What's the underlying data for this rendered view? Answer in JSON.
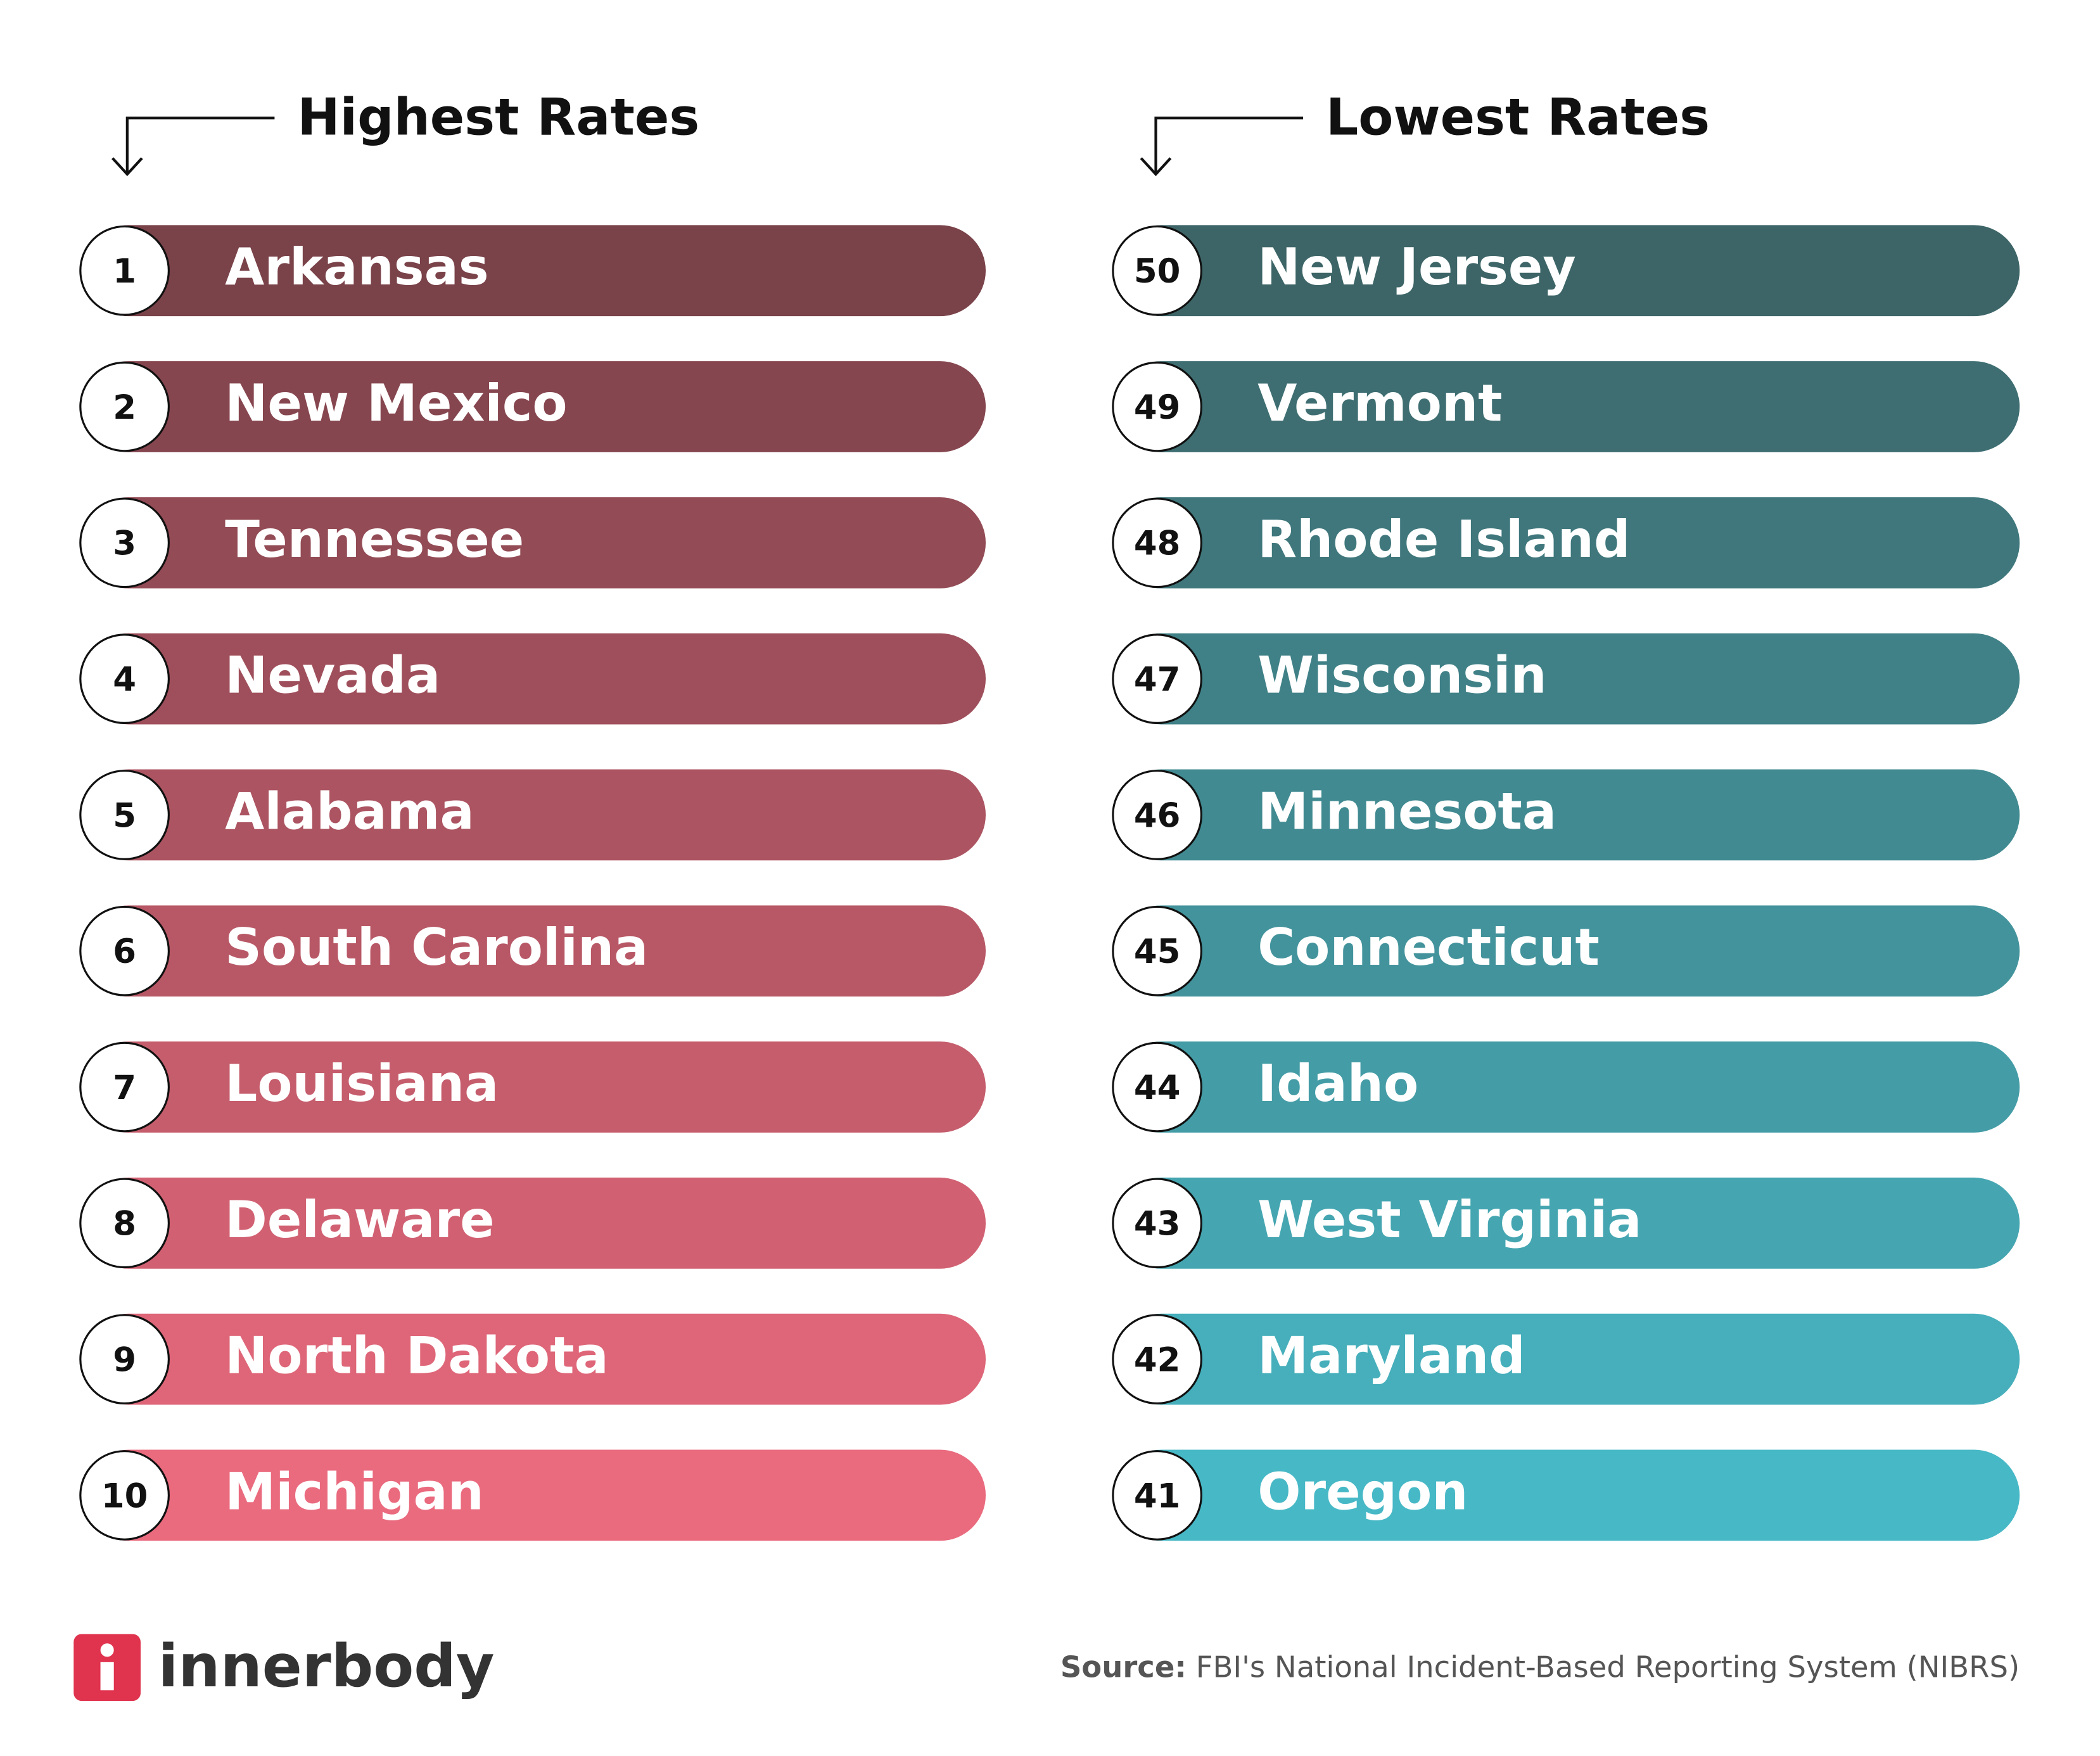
{
  "highest": {
    "title": "Highest Rates",
    "items": [
      {
        "rank": 1,
        "name": "Arkansas"
      },
      {
        "rank": 2,
        "name": "New Mexico"
      },
      {
        "rank": 3,
        "name": "Tennessee"
      },
      {
        "rank": 4,
        "name": "Nevada"
      },
      {
        "rank": 5,
        "name": "Alabama"
      },
      {
        "rank": 6,
        "name": "South Carolina"
      },
      {
        "rank": 7,
        "name": "Louisiana"
      },
      {
        "rank": 8,
        "name": "Delaware"
      },
      {
        "rank": 9,
        "name": "North Dakota"
      },
      {
        "rank": 10,
        "name": "Michigan"
      }
    ]
  },
  "lowest": {
    "title": "Lowest Rates",
    "items": [
      {
        "rank": 50,
        "name": "New Jersey"
      },
      {
        "rank": 49,
        "name": "Vermont"
      },
      {
        "rank": 48,
        "name": "Rhode Island"
      },
      {
        "rank": 47,
        "name": "Wisconsin"
      },
      {
        "rank": 46,
        "name": "Minnesota"
      },
      {
        "rank": 45,
        "name": "Connecticut"
      },
      {
        "rank": 44,
        "name": "Idaho"
      },
      {
        "rank": 43,
        "name": "West Virginia"
      },
      {
        "rank": 42,
        "name": "Maryland"
      },
      {
        "rank": 41,
        "name": "Oregon"
      }
    ]
  },
  "footer": {
    "logo": "innerbody",
    "source_label": "Source:",
    "source_text": "FBI's National Incident-Based Reporting System (NIBRS)"
  }
}
